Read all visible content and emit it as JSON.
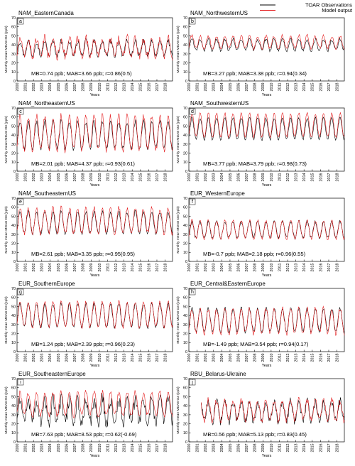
{
  "legend": {
    "placement": "top-right",
    "items": [
      {
        "label": "TOAR Observations",
        "color": "#000000"
      },
      {
        "label": "Model output",
        "color": "#e41a1c"
      }
    ]
  },
  "chart_data": [
    {
      "type": "line",
      "panel": "a",
      "title": "NAM_EasternCanada",
      "xlabel": "Years",
      "ylabel": "Monthly mean MDA8 O3 (ppb)",
      "ylim": [
        0,
        70
      ],
      "y_ticks": [
        0,
        10,
        20,
        30,
        40,
        50,
        60,
        70
      ],
      "x_ticks": [
        "2000",
        "2001",
        "2002",
        "2003",
        "2004",
        "2005",
        "2006",
        "2007",
        "2008",
        "2009",
        "2010",
        "2011",
        "2012",
        "2013",
        "2014",
        "2015",
        "2016",
        "2017",
        "2018"
      ],
      "x_start": 2000,
      "x_end": 2018.9,
      "stats": "MB=0.74 ppb;    MAB=3.66 ppb;    r=0.86(0.5)",
      "series": [
        {
          "name": "TOAR Observations",
          "mean": 36,
          "amp": 8,
          "noise": 3
        },
        {
          "name": "Model output",
          "mean": 37,
          "amp": 10,
          "noise": 5
        }
      ]
    },
    {
      "type": "line",
      "panel": "b",
      "title": "NAM_NorthwesternUS",
      "xlabel": "Years",
      "ylabel": "Monthly mean MDA8 O3 (ppb)",
      "ylim": [
        0,
        70
      ],
      "y_ticks": [
        0,
        10,
        20,
        30,
        40,
        50,
        60,
        70
      ],
      "x_ticks": [
        "2000",
        "2001",
        "2002",
        "2003",
        "2004",
        "2005",
        "2006",
        "2007",
        "2008",
        "2009",
        "2010",
        "2011",
        "2012",
        "2013",
        "2014",
        "2015",
        "2016",
        "2017",
        "2018"
      ],
      "x_start": 2000,
      "x_end": 2018.9,
      "stats": "MB=3.27 ppb;    MAB=3.38 ppb;    r=0.94(0.34)",
      "series": [
        {
          "name": "TOAR Observations",
          "mean": 40,
          "amp": 6,
          "noise": 2
        },
        {
          "name": "Model output",
          "mean": 43,
          "amp": 7,
          "noise": 2
        }
      ]
    },
    {
      "type": "line",
      "panel": "c",
      "title": "NAM_NortheasternUS",
      "xlabel": "Years",
      "ylabel": "Monthly mean MDA8 O3 (ppb)",
      "ylim": [
        0,
        70
      ],
      "y_ticks": [
        0,
        10,
        20,
        30,
        40,
        50,
        60,
        70
      ],
      "x_ticks": [
        "2000",
        "2001",
        "2002",
        "2003",
        "2004",
        "2005",
        "2006",
        "2007",
        "2008",
        "2009",
        "2010",
        "2011",
        "2012",
        "2013",
        "2014",
        "2015",
        "2016",
        "2017",
        "2018"
      ],
      "x_start": 2000,
      "x_end": 2018.9,
      "stats": "MB=2.01 ppb;    MAB=4.37 ppb;    r=0.93(0.61)",
      "series": [
        {
          "name": "TOAR Observations",
          "mean": 40,
          "amp": 15,
          "noise": 3
        },
        {
          "name": "Model output",
          "mean": 42,
          "amp": 19,
          "noise": 4
        }
      ]
    },
    {
      "type": "line",
      "panel": "d",
      "title": "NAM_SouthwesternUS",
      "xlabel": "Years",
      "ylabel": "Monthly mean MDA8 O3 (ppb)",
      "ylim": [
        0,
        70
      ],
      "y_ticks": [
        0,
        10,
        20,
        30,
        40,
        50,
        60,
        70
      ],
      "x_ticks": [
        "2000",
        "2001",
        "2002",
        "2003",
        "2004",
        "2005",
        "2006",
        "2007",
        "2008",
        "2009",
        "2010",
        "2011",
        "2012",
        "2013",
        "2014",
        "2015",
        "2016",
        "2017",
        "2018"
      ],
      "x_start": 2000,
      "x_end": 2018.9,
      "stats": "MB=3.77 ppb;    MAB=3.79 ppb;    r=0.98(0.73)",
      "series": [
        {
          "name": "TOAR Observations",
          "mean": 47,
          "amp": 12,
          "noise": 1.5
        },
        {
          "name": "Model output",
          "mean": 51,
          "amp": 13,
          "noise": 1.5
        }
      ]
    },
    {
      "type": "line",
      "panel": "e",
      "title": "NAM_SoutheasternUS",
      "xlabel": "Years",
      "ylabel": "Monthly mean MDA8 O3 (ppb)",
      "ylim": [
        0,
        70
      ],
      "y_ticks": [
        0,
        10,
        20,
        30,
        40,
        50,
        60,
        70
      ],
      "x_ticks": [
        "2000",
        "2001",
        "2002",
        "2003",
        "2004",
        "2005",
        "2006",
        "2007",
        "2008",
        "2009",
        "2010",
        "2011",
        "2012",
        "2013",
        "2014",
        "2015",
        "2016",
        "2017",
        "2018"
      ],
      "x_start": 2000,
      "x_end": 2018.9,
      "stats": "MB=2.61 ppb;    MAB=3.35 ppb;    r=0.95(0.95)",
      "series": [
        {
          "name": "TOAR Observations",
          "mean": 43,
          "amp": 12,
          "noise": 2
        },
        {
          "name": "Model output",
          "mean": 45,
          "amp": 14,
          "noise": 3
        }
      ]
    },
    {
      "type": "line",
      "panel": "f",
      "title": "EUR_WesternEurope",
      "xlabel": "Years",
      "ylabel": "Monthly mean MDA8 O3 (ppb)",
      "ylim": [
        0,
        70
      ],
      "y_ticks": [
        0,
        10,
        20,
        30,
        40,
        50,
        60,
        70
      ],
      "x_ticks": [
        "2000",
        "2001",
        "2002",
        "2003",
        "2004",
        "2005",
        "2006",
        "2007",
        "2008",
        "2009",
        "2010",
        "2011",
        "2012",
        "2013",
        "2014",
        "2015",
        "2016",
        "2017",
        "2018"
      ],
      "x_start": 2000,
      "x_end": 2018.9,
      "stats": "MB=-0.7 ppb;    MAB=2.18 ppb;    r=0.96(0.55)",
      "series": [
        {
          "name": "TOAR Observations",
          "mean": 35,
          "amp": 9,
          "noise": 2
        },
        {
          "name": "Model output",
          "mean": 35,
          "amp": 10,
          "noise": 2
        }
      ]
    },
    {
      "type": "line",
      "panel": "g",
      "title": "EUR_SouthernEurope",
      "xlabel": "Years",
      "ylabel": "Monthly mean MDA8 O3 (ppb)",
      "ylim": [
        0,
        70
      ],
      "y_ticks": [
        0,
        10,
        20,
        30,
        40,
        50,
        60,
        70
      ],
      "x_ticks": [
        "2000",
        "2001",
        "2002",
        "2003",
        "2004",
        "2005",
        "2006",
        "2007",
        "2008",
        "2009",
        "2010",
        "2011",
        "2012",
        "2013",
        "2014",
        "2015",
        "2016",
        "2017",
        "2018"
      ],
      "x_start": 2000,
      "x_end": 2018.9,
      "stats": "MB=1.24 ppb;    MAB=2.39 ppb;    r=0.96(0.23)",
      "series": [
        {
          "name": "TOAR Observations",
          "mean": 40,
          "amp": 13,
          "noise": 2
        },
        {
          "name": "Model output",
          "mean": 41,
          "amp": 14,
          "noise": 2
        }
      ]
    },
    {
      "type": "line",
      "panel": "h",
      "title": "EUR_Central&EasternEurope",
      "xlabel": "Years",
      "ylabel": "Monthly mean MDA8 O3 (ppb)",
      "ylim": [
        0,
        70
      ],
      "y_ticks": [
        0,
        10,
        20,
        30,
        40,
        50,
        60,
        70
      ],
      "x_ticks": [
        "2000",
        "2001",
        "2002",
        "2003",
        "2004",
        "2005",
        "2006",
        "2007",
        "2008",
        "2009",
        "2010",
        "2011",
        "2012",
        "2013",
        "2014",
        "2015",
        "2016",
        "2017",
        "2018"
      ],
      "x_start": 2000,
      "x_end": 2018.9,
      "stats": "MB=-1.49 ppb;    MAB=3.54 ppb;    r=0.94(0.17)",
      "series": [
        {
          "name": "TOAR Observations",
          "mean": 35,
          "amp": 13,
          "noise": 2
        },
        {
          "name": "Model output",
          "mean": 34,
          "amp": 14,
          "noise": 3
        }
      ]
    },
    {
      "type": "line",
      "panel": "i",
      "title": "EUR_SoutheasternEurope",
      "xlabel": "Years",
      "ylabel": "Monthly mean MDA8 O3 (ppb)",
      "ylim": [
        0,
        70
      ],
      "y_ticks": [
        0,
        10,
        20,
        30,
        40,
        50,
        60,
        70
      ],
      "x_ticks": [
        "2000",
        "2001",
        "2002",
        "2003",
        "2004",
        "2005",
        "2006",
        "2007",
        "2008",
        "2009",
        "2010",
        "2011",
        "2012",
        "2013",
        "2014",
        "2015",
        "2016",
        "2017",
        "2018"
      ],
      "x_start": 2000,
      "x_end": 2018.9,
      "stats": "MB=7.63 ppb;    MAB=8.53 ppb;    r=0.62(-0.69)",
      "series": [
        {
          "name": "TOAR Observations",
          "mean": 34,
          "amp": 13,
          "noise": 8
        },
        {
          "name": "Model output",
          "mean": 42,
          "amp": 13,
          "noise": 3
        }
      ]
    },
    {
      "type": "line",
      "panel": "j",
      "title": "RBU_Belarus-Ukraine",
      "xlabel": "Years",
      "ylabel": "Monthly mean MDA8 O3 (ppb)",
      "ylim": [
        0,
        70
      ],
      "y_ticks": [
        0,
        10,
        20,
        30,
        40,
        50,
        60,
        70
      ],
      "x_ticks": [
        "2000",
        "2001",
        "2002",
        "2003",
        "2004",
        "2005",
        "2006",
        "2007",
        "2008",
        "2009",
        "2010",
        "2011",
        "2012",
        "2013",
        "2014",
        "2015",
        "2016",
        "2017",
        "2018"
      ],
      "x_start": 2000,
      "x_end": 2018.9,
      "data_start": 2001.5,
      "stats": "MB=0.56 ppb;    MAB=5.13 ppb;    r=0.83(0.45)",
      "series": [
        {
          "name": "TOAR Observations",
          "mean": 34,
          "amp": 11,
          "noise": 5
        },
        {
          "name": "Model output",
          "mean": 35,
          "amp": 11,
          "noise": 4
        }
      ]
    }
  ]
}
